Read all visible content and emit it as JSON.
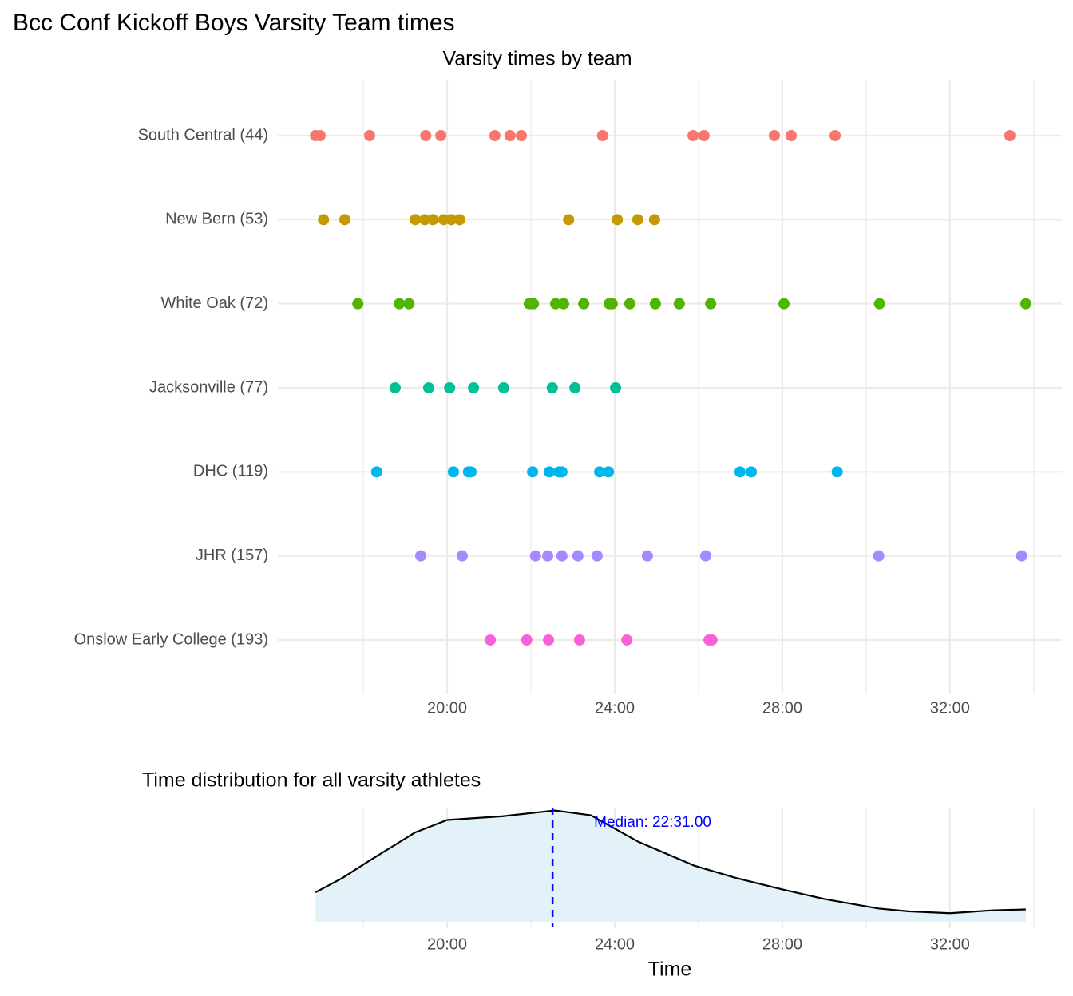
{
  "title": "Bcc Conf Kickoff Boys Varsity Team times",
  "chart_data": [
    {
      "type": "strip",
      "title": "Varsity times by team",
      "categories": [
        "South Central (44)",
        "New Bern (53)",
        "White Oak (72)",
        "Jacksonville (77)",
        "DHC (119)",
        "JHR (157)",
        "Onslow Early College (193)"
      ],
      "colors": [
        "#F8766D",
        "#C49A00",
        "#53B400",
        "#00C094",
        "#00B6EB",
        "#A58AFF",
        "#FB61D7"
      ],
      "values": [
        [
          16.86,
          16.97,
          18.15,
          19.49,
          19.85,
          21.14,
          21.5,
          21.77,
          23.71,
          25.87,
          26.13,
          27.81,
          28.21,
          29.26,
          33.43
        ],
        [
          17.05,
          17.56,
          19.24,
          19.47,
          19.66,
          19.92,
          20.1,
          20.3,
          22.9,
          24.06,
          24.55,
          24.95
        ],
        [
          17.87,
          18.86,
          19.09,
          21.96,
          22.06,
          22.59,
          22.78,
          23.26,
          23.87,
          23.94,
          24.36,
          24.97,
          25.54,
          26.29,
          28.04,
          30.32,
          33.81
        ],
        [
          18.76,
          19.56,
          20.06,
          20.63,
          21.35,
          22.51,
          23.05,
          24.02
        ],
        [
          18.32,
          20.15,
          20.51,
          20.57,
          22.04,
          22.44,
          22.67,
          22.74,
          23.64,
          23.85,
          26.99,
          27.26,
          29.31
        ],
        [
          19.37,
          20.36,
          22.11,
          22.4,
          22.74,
          23.12,
          23.58,
          24.78,
          26.17,
          30.3,
          33.71
        ],
        [
          21.03,
          21.9,
          22.42,
          23.16,
          24.29,
          26.25,
          26.32
        ]
      ],
      "xlim": [
        15.96,
        34.67
      ],
      "xticks": [
        {
          "value": 20,
          "label": "20:00"
        },
        {
          "value": 24,
          "label": "24:00"
        },
        {
          "value": 28,
          "label": "28:00"
        },
        {
          "value": 32,
          "label": "32:00"
        }
      ],
      "x_minor_grid": [
        18,
        22,
        26,
        30,
        34
      ],
      "grid": true
    },
    {
      "type": "density",
      "title": "Time distribution for all varsity athletes",
      "xlabel": "Time",
      "x": [
        16.86,
        17.5,
        18.1,
        19.24,
        20,
        21.33,
        22.57,
        23.43,
        24.57,
        25.9,
        26.9,
        28,
        29,
        30.29,
        31,
        32,
        33,
        33.81
      ],
      "values": [
        0.031,
        0.046,
        0.063,
        0.094,
        0.107,
        0.111,
        0.117,
        0.112,
        0.084,
        0.059,
        0.046,
        0.034,
        0.024,
        0.014,
        0.011,
        0.009,
        0.012,
        0.013
      ],
      "fill": "#E0F0F8",
      "color": "#000000",
      "median": {
        "value": 22.5167,
        "label": "Median: 22:31.00",
        "color": "#0000FF"
      },
      "xlim": [
        15.96,
        34.67
      ],
      "ylim": [
        0,
        0.12
      ],
      "xticks": [
        {
          "value": 20,
          "label": "20:00"
        },
        {
          "value": 24,
          "label": "24:00"
        },
        {
          "value": 28,
          "label": "28:00"
        },
        {
          "value": 32,
          "label": "32:00"
        }
      ],
      "x_minor_grid": [
        18,
        22,
        26,
        30,
        34
      ],
      "grid": true
    }
  ]
}
